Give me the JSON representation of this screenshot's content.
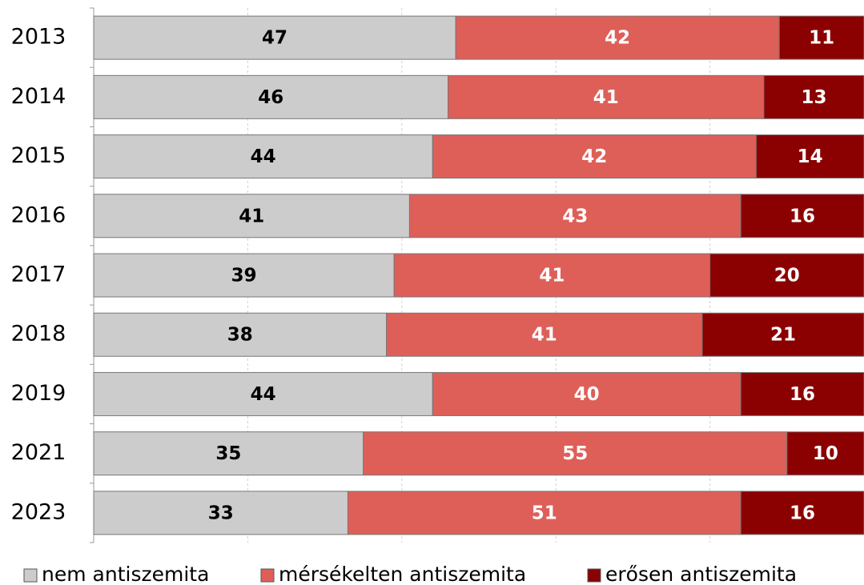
{
  "chart_data": {
    "type": "stacked-bar-horizontal",
    "categories": [
      "2013",
      "2014",
      "2015",
      "2016",
      "2017",
      "2018",
      "2019",
      "2021",
      "2023"
    ],
    "series": [
      {
        "name": "nem antiszemita",
        "color": "#cccccc",
        "label_color": "#000000",
        "values": [
          47,
          46,
          44,
          41,
          39,
          38,
          44,
          35,
          33
        ]
      },
      {
        "name": "mérsékelten antiszemita",
        "color": "#de5f58",
        "label_color": "#ffffff",
        "values": [
          42,
          41,
          42,
          43,
          41,
          41,
          40,
          55,
          51
        ]
      },
      {
        "name": "erősen antiszemita",
        "color": "#8b0000",
        "label_color": "#ffffff",
        "values": [
          11,
          13,
          14,
          16,
          20,
          21,
          16,
          10,
          16
        ]
      }
    ],
    "xlim": [
      0,
      100
    ],
    "xticks": [
      0,
      20,
      40,
      60,
      80,
      100
    ],
    "grid": true,
    "legend": "bottom"
  }
}
